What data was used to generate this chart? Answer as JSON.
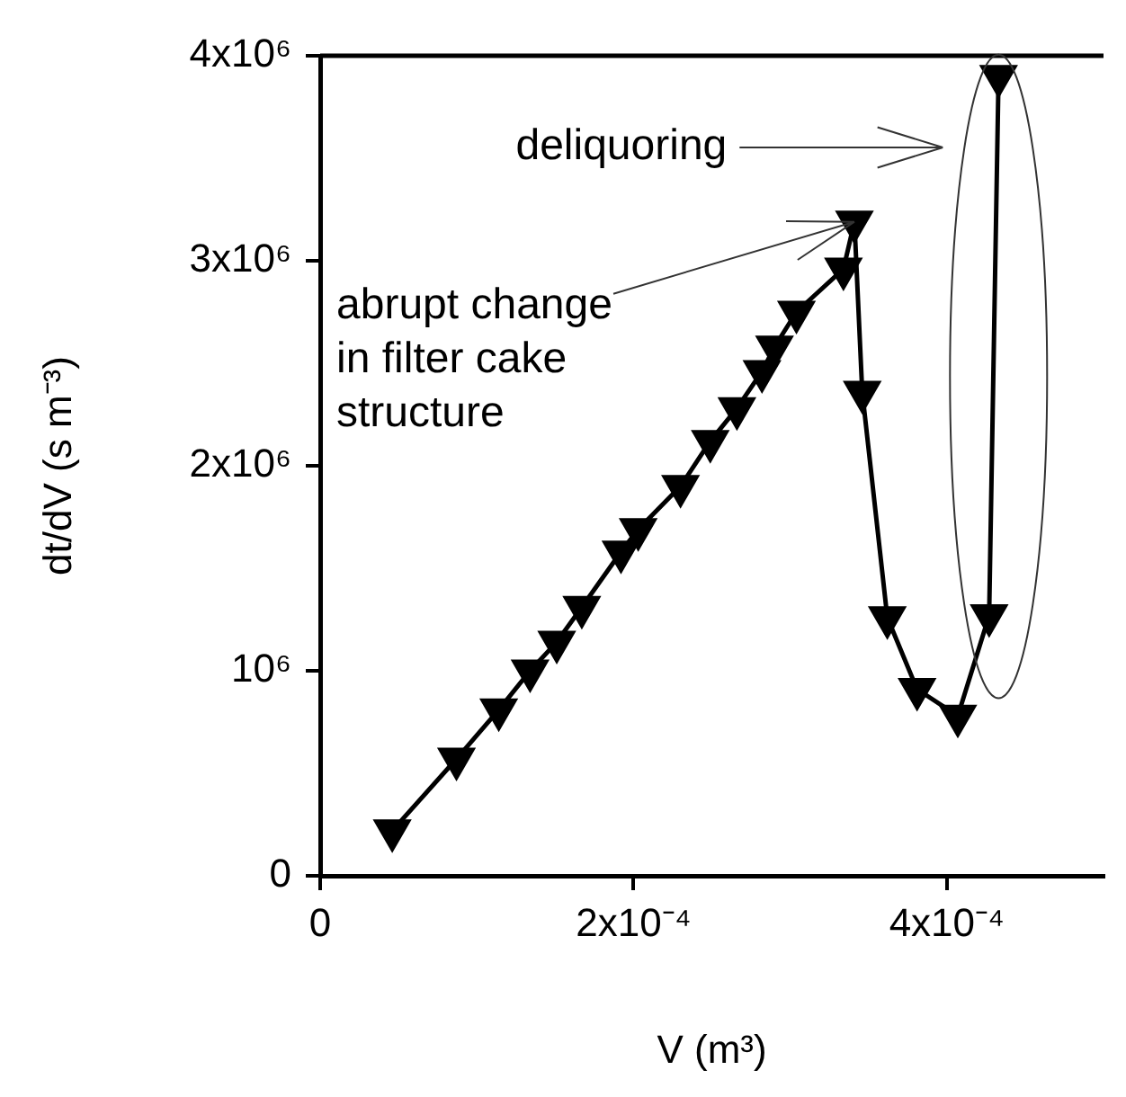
{
  "chart_data": {
    "type": "line",
    "xlabel": "V (m³)",
    "ylabel": "dt/dV (s m⁻³)",
    "x": [
      4.6e-05,
      8.7e-05,
      0.000114,
      0.000134,
      0.000151,
      0.000167,
      0.000192,
      0.000203,
      0.00023,
      0.000249,
      0.000266,
      0.000282,
      0.00029,
      0.000304,
      0.000334,
      0.000341,
      0.000346,
      0.000362,
      0.000381,
      0.000407,
      0.000427,
      0.000433
    ],
    "series": [
      {
        "color": "#000000",
        "values": [
          220000,
          570000,
          810000,
          1000000,
          1140000,
          1310000,
          1580000,
          1690000,
          1900000,
          2120000,
          2280000,
          2460000,
          2580000,
          2750000,
          2960000,
          3190000,
          2360000,
          1260000,
          910000,
          780000,
          1270000,
          3900000
        ]
      }
    ],
    "xlim": [
      0,
      0.0005
    ],
    "xticks": [
      {
        "value": 0,
        "label": "0"
      },
      {
        "value": 0.0002,
        "label": "2x10⁻⁴"
      },
      {
        "value": 0.0004,
        "label": "4x10⁻⁴"
      }
    ],
    "ylim": [
      0,
      4000000
    ],
    "yticks": [
      {
        "value": 0,
        "label": "0"
      },
      {
        "value": 1000000,
        "label": "10⁶"
      },
      {
        "value": 2000000,
        "label": "2x10⁶"
      },
      {
        "value": 3000000,
        "label": "3x10⁶"
      },
      {
        "value": 4000000,
        "label": "4x10⁶"
      }
    ],
    "grid": false,
    "legend": false,
    "marker": "triangle",
    "line_style": "solid",
    "annotations": [
      "deliquoring",
      {
        "text": "abrupt change\nin filter cake\nstructure",
        "x": 0.000341,
        "y": 3190000
      }
    ]
  }
}
